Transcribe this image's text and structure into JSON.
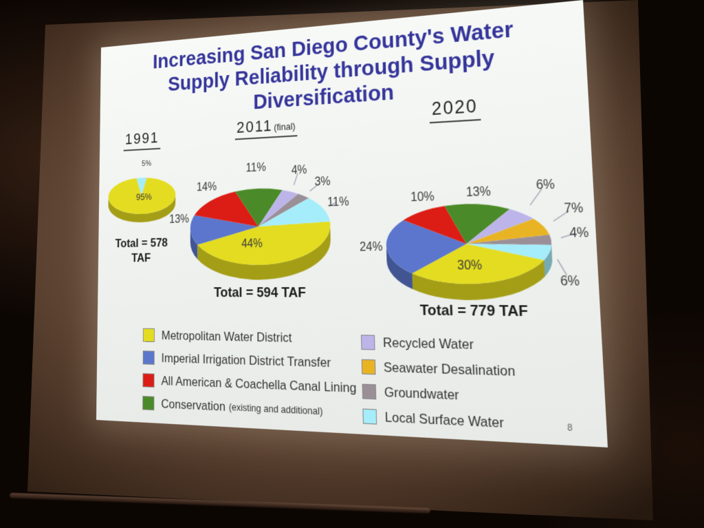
{
  "slide": {
    "title_lines": [
      "Increasing San Diego County's Water",
      "Supply Reliability through Supply",
      "Diversification"
    ],
    "page_number": "8"
  },
  "colors": {
    "metropolitan": "#e4dc20",
    "imperial": "#5b76cc",
    "canal_lining": "#dc1d15",
    "conservation": "#4b8a28",
    "recycled": "#bdb5e9",
    "seawater": "#e9b424",
    "groundwater": "#9b8f97",
    "local_surface": "#a5edfa",
    "title_text": "#35359b",
    "label_text": "#3b3b3b"
  },
  "chart_data": [
    {
      "type": "pie",
      "title": "1991",
      "title_suffix": "",
      "total_label": "Total = 578\nTAF",
      "total_taf": 578,
      "slices": [
        {
          "label": "Local Surface Water",
          "color": "local_surface",
          "pct": 5,
          "display": "5%"
        },
        {
          "label": "Metropolitan Water District",
          "color": "metropolitan",
          "pct": 95,
          "display": "95%"
        }
      ]
    },
    {
      "type": "pie",
      "title": "2011",
      "title_suffix": "(final)",
      "total_label": "Total = 594 TAF",
      "total_taf": 594,
      "slices": [
        {
          "label": "Metropolitan Water District",
          "color": "metropolitan",
          "pct": 44,
          "display": "44%"
        },
        {
          "label": "Imperial Irrigation District Transfer",
          "color": "imperial",
          "pct": 13,
          "display": "13%"
        },
        {
          "label": "All American & Coachella Canal Lining",
          "color": "canal_lining",
          "pct": 14,
          "display": "14%"
        },
        {
          "label": "Conservation (existing and additional)",
          "color": "conservation",
          "pct": 11,
          "display": "11%"
        },
        {
          "label": "Recycled Water",
          "color": "recycled",
          "pct": 4,
          "display": "4%"
        },
        {
          "label": "Groundwater",
          "color": "groundwater",
          "pct": 3,
          "display": "3%"
        },
        {
          "label": "Local Surface Water",
          "color": "local_surface",
          "pct": 11,
          "display": "11%"
        }
      ]
    },
    {
      "type": "pie",
      "title": "2020",
      "title_suffix": "",
      "total_label": "Total = 779 TAF",
      "total_taf": 779,
      "slices": [
        {
          "label": "Metropolitan Water District",
          "color": "metropolitan",
          "pct": 30,
          "display": "30%"
        },
        {
          "label": "Imperial Irrigation District Transfer",
          "color": "imperial",
          "pct": 24,
          "display": "24%"
        },
        {
          "label": "All American & Coachella Canal Lining",
          "color": "canal_lining",
          "pct": 10,
          "display": "10%"
        },
        {
          "label": "Conservation (existing and additional)",
          "color": "conservation",
          "pct": 13,
          "display": "13%"
        },
        {
          "label": "Recycled Water",
          "color": "recycled",
          "pct": 6,
          "display": "6%"
        },
        {
          "label": "Seawater Desalination",
          "color": "seawater",
          "pct": 7,
          "display": "7%"
        },
        {
          "label": "Groundwater",
          "color": "groundwater",
          "pct": 4,
          "display": "4%"
        },
        {
          "label": "Local Surface Water",
          "color": "local_surface",
          "pct": 6,
          "display": "6%"
        }
      ]
    }
  ],
  "legend": {
    "left": [
      {
        "label": "Metropolitan Water District",
        "suffix": "",
        "color": "metropolitan"
      },
      {
        "label": "Imperial Irrigation District Transfer",
        "suffix": "",
        "color": "imperial"
      },
      {
        "label": "All American & Coachella Canal Lining",
        "suffix": "",
        "color": "canal_lining"
      },
      {
        "label": "Conservation",
        "suffix": "(existing and additional)",
        "color": "conservation"
      }
    ],
    "right": [
      {
        "label": "Recycled Water",
        "suffix": "",
        "color": "recycled"
      },
      {
        "label": "Seawater Desalination",
        "suffix": "",
        "color": "seawater"
      },
      {
        "label": "Groundwater",
        "suffix": "",
        "color": "groundwater"
      },
      {
        "label": "Local Surface Water",
        "suffix": "",
        "color": "local_surface"
      }
    ]
  }
}
